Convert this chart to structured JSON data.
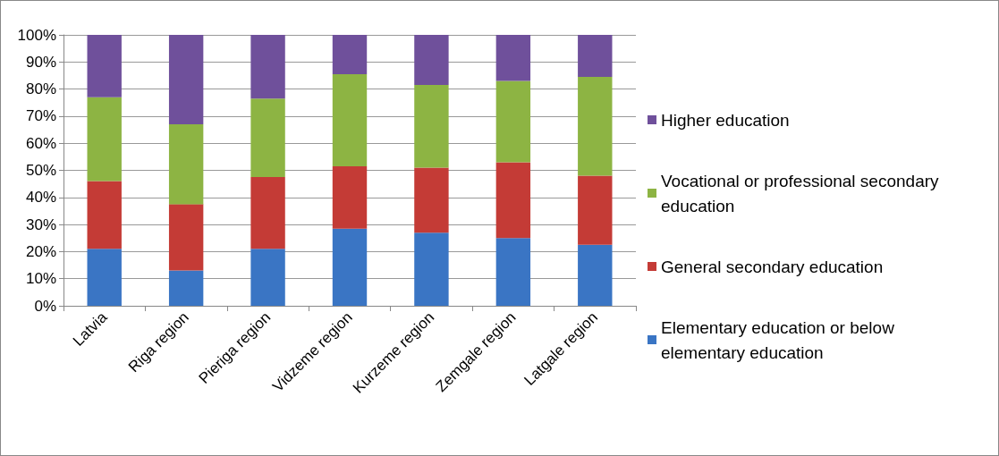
{
  "chart_data": {
    "type": "bar",
    "stacked": true,
    "categories": [
      "Latvia",
      "Riga region",
      "Pieriga region",
      "Vidzeme region",
      "Kurzeme region",
      "Zemgale region",
      "Latgale region"
    ],
    "series": [
      {
        "name": "Elementary education or below elementary education",
        "color": "#3a75c4",
        "values": [
          21,
          13,
          21,
          28.5,
          27,
          25,
          22.5
        ]
      },
      {
        "name": "General secondary education",
        "color": "#c43b36",
        "values": [
          25,
          24.5,
          26.5,
          23,
          24,
          28,
          25.5
        ]
      },
      {
        "name": "Vocational or professional secondary education",
        "color": "#8db443",
        "values": [
          31,
          29.5,
          29,
          34,
          30.5,
          30,
          36.5
        ]
      },
      {
        "name": "Higher education",
        "color": "#6f509b",
        "values": [
          23,
          33,
          23.5,
          14.5,
          18.5,
          17,
          15.5
        ]
      }
    ],
    "ylim": [
      0,
      100
    ],
    "yticks": [
      {
        "value": 0,
        "label": "0%"
      },
      {
        "value": 10,
        "label": "10%"
      },
      {
        "value": 20,
        "label": "20%"
      },
      {
        "value": 30,
        "label": "30%"
      },
      {
        "value": 40,
        "label": "40%"
      },
      {
        "value": 50,
        "label": "50%"
      },
      {
        "value": 60,
        "label": "60%"
      },
      {
        "value": 70,
        "label": "70%"
      },
      {
        "value": 80,
        "label": "80%"
      },
      {
        "value": 90,
        "label": "90%"
      },
      {
        "value": 100,
        "label": "100%"
      }
    ],
    "grid": "y",
    "legend": "right"
  }
}
